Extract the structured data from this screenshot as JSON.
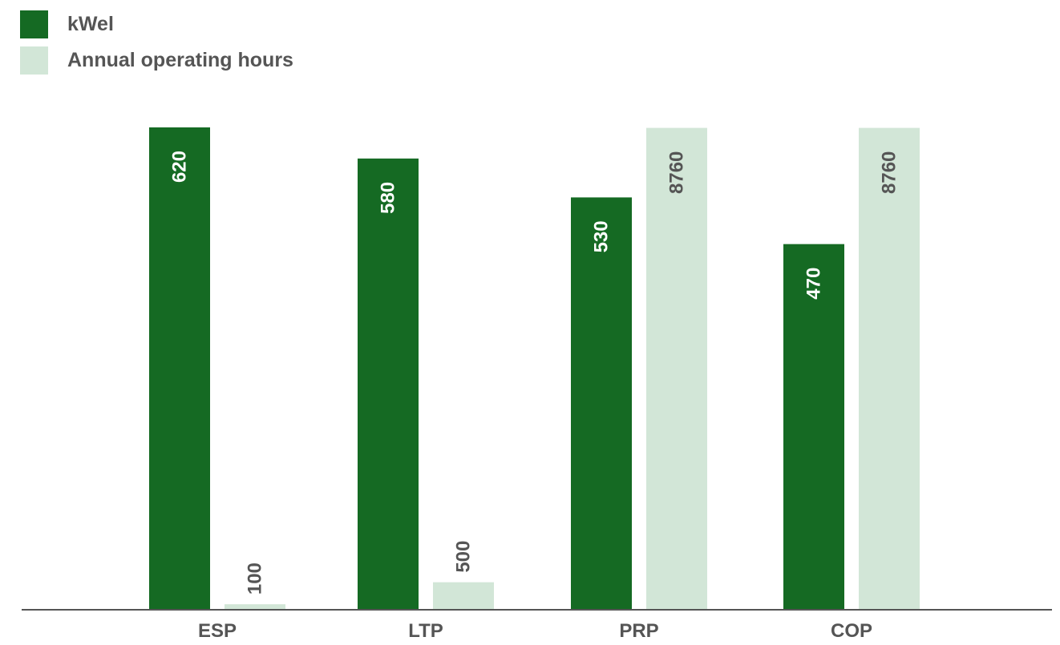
{
  "chart_data": {
    "type": "bar",
    "categories": [
      "ESP",
      "LTP",
      "PRP",
      "COP"
    ],
    "series": [
      {
        "name": "kWel",
        "values": [
          620,
          580,
          530,
          470
        ],
        "color": "#156a23"
      },
      {
        "name": "Annual operating hours",
        "values": [
          100,
          500,
          8760,
          8760
        ],
        "color": "#d2e6d7"
      }
    ],
    "title": "",
    "xlabel": "",
    "ylabel": "",
    "legend": "top-left",
    "grid": false,
    "note": "Each series is drawn on its own scale; values above the chart area are clipped at the top."
  }
}
